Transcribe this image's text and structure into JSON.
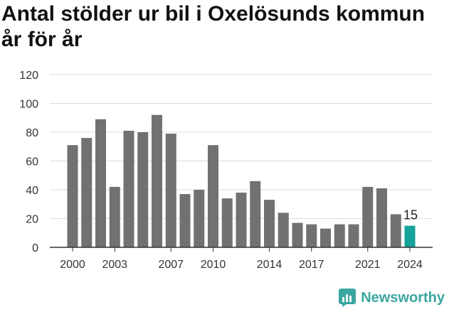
{
  "title": "Antal stölder ur bil i Oxelösunds kommun år för år",
  "brand": {
    "name": "Newsworthy",
    "icon": "newsworthy-logo-icon"
  },
  "colors": {
    "bar": "#717073",
    "highlight": "#15a39a",
    "grid": "#dddddd",
    "axis": "#333333"
  },
  "chart_data": {
    "type": "bar",
    "title": "Antal stölder ur bil i Oxelösunds kommun år för år",
    "xlabel": "",
    "ylabel": "",
    "ylim": [
      0,
      120
    ],
    "yticks": [
      0,
      20,
      40,
      60,
      80,
      100,
      120
    ],
    "grid": true,
    "categories": [
      "2000",
      "2001",
      "2002",
      "2003",
      "2004",
      "2005",
      "2006",
      "2007",
      "2008",
      "2009",
      "2010",
      "2011",
      "2012",
      "2013",
      "2014",
      "2015",
      "2016",
      "2017",
      "2018",
      "2019",
      "2020",
      "2021",
      "2022",
      "2023",
      "2024"
    ],
    "values": [
      71,
      76,
      89,
      42,
      81,
      80,
      92,
      79,
      37,
      40,
      71,
      34,
      38,
      46,
      33,
      24,
      17,
      16,
      13,
      16,
      16,
      42,
      41,
      23,
      15
    ],
    "xtick_labels": [
      "2000",
      "2003",
      "2007",
      "2010",
      "2014",
      "2017",
      "2021",
      "2024"
    ],
    "highlight_category": "2024",
    "data_labels": [
      {
        "category": "2024",
        "text": "15"
      }
    ]
  }
}
